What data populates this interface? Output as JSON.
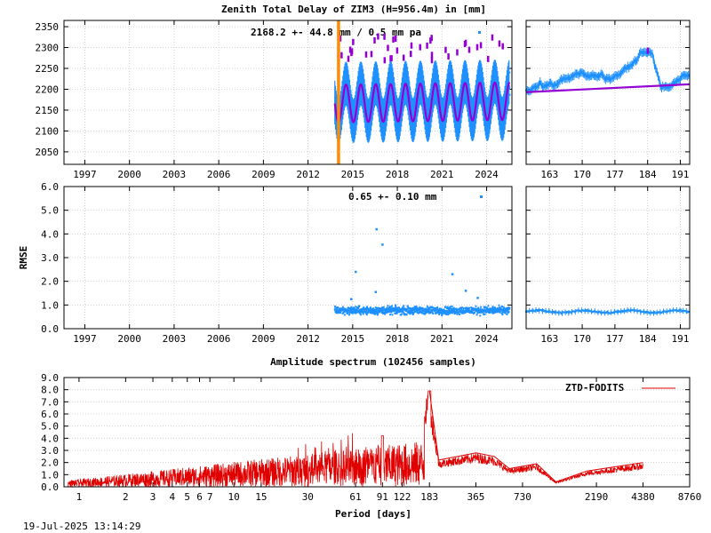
{
  "colors": {
    "series": "#1e90ff",
    "fit": "#9400d3",
    "marker": "#ff8c00",
    "spectrum": "#e00000"
  },
  "footer": {
    "timestamp": "19-Jul-2025 13:14:29"
  },
  "chart_data": [
    {
      "id": "ztd",
      "type": "scatter",
      "title": "Zenith Total Delay of ZIM3 (H=956.4m) in [mm]",
      "annotation": "2168.2 +-  44.8 mm /  0.5 mm pa",
      "xlabel": "",
      "ylabel": "",
      "ylim": [
        2020,
        2365
      ],
      "yticks": [
        "2050",
        "2100",
        "2150",
        "2200",
        "2250",
        "2300",
        "2350"
      ],
      "xlim": [
        1995.6,
        2025.7
      ],
      "xticks": [
        "1997",
        "2000",
        "2003",
        "2006",
        "2009",
        "2012",
        "2015",
        "2018",
        "2021",
        "2024"
      ],
      "data_start": 2013.8,
      "data_end": 2025.55,
      "mean": 2168.2,
      "sigma": 44.8,
      "trend_mm_per_year": 0.5,
      "seasonal_amplitude": 45,
      "marker_year": 2014.05,
      "grid": true
    },
    {
      "id": "ztd-recent",
      "type": "scatter",
      "ylim": [
        2020,
        2365
      ],
      "xlim": [
        158,
        193
      ],
      "xticks": [
        "163",
        "170",
        "177",
        "184",
        "191"
      ]
    },
    {
      "id": "rmse",
      "type": "scatter",
      "annotation": "0.65 +-  0.10 mm",
      "ylabel": "RMSE",
      "ylim": [
        0,
        6
      ],
      "yticks": [
        "0.0",
        "1.0",
        "2.0",
        "3.0",
        "4.0",
        "5.0",
        "6.0"
      ],
      "xlim": [
        1995.6,
        2025.7
      ],
      "xticks": [
        "1997",
        "2000",
        "2003",
        "2006",
        "2009",
        "2012",
        "2015",
        "2018",
        "2021",
        "2024"
      ],
      "mean": 0.65,
      "sigma": 0.1,
      "outliers": [
        {
          "x": 2015.2,
          "y": 2.4
        },
        {
          "x": 2016.6,
          "y": 4.2
        },
        {
          "x": 2017.0,
          "y": 3.55
        },
        {
          "x": 2016.55,
          "y": 1.55
        },
        {
          "x": 2021.7,
          "y": 2.3
        },
        {
          "x": 2022.6,
          "y": 1.6
        },
        {
          "x": 2014.9,
          "y": 1.25
        },
        {
          "x": 2023.4,
          "y": 1.3
        }
      ]
    },
    {
      "id": "rmse-recent",
      "type": "scatter",
      "ylim": [
        0,
        6
      ],
      "xlim": [
        158,
        193
      ],
      "xticks": [
        "163",
        "170",
        "177",
        "184",
        "191"
      ]
    },
    {
      "id": "spectrum",
      "type": "line",
      "title": "Amplitude spectrum (102456 samples)",
      "xlabel": "Period [days]",
      "ylim": [
        0,
        9
      ],
      "yticks": [
        "0.0",
        "1.0",
        "2.0",
        "3.0",
        "4.0",
        "5.0",
        "6.0",
        "7.0",
        "8.0",
        "9.0"
      ],
      "xlim": [
        0.8,
        8760
      ],
      "xscale": "log",
      "xticks": [
        {
          "value": 1,
          "label": "1"
        },
        {
          "value": 2,
          "label": "2"
        },
        {
          "value": 3,
          "label": "3"
        },
        {
          "value": 4,
          "label": "4"
        },
        {
          "value": 5,
          "label": "5"
        },
        {
          "value": 6,
          "label": "6"
        },
        {
          "value": 7,
          "label": "7"
        },
        {
          "value": 10,
          "label": "10"
        },
        {
          "value": 15,
          "label": "15"
        },
        {
          "value": 30,
          "label": "30"
        },
        {
          "value": 61,
          "label": "61"
        },
        {
          "value": 91,
          "label": "91"
        },
        {
          "value": 122,
          "label": "122"
        },
        {
          "value": 183,
          "label": "183"
        },
        {
          "value": 365,
          "label": "365"
        },
        {
          "value": 730,
          "label": "730"
        },
        {
          "value": 2190,
          "label": "2190"
        },
        {
          "value": 4380,
          "label": "4380"
        },
        {
          "value": 8760,
          "label": "8760"
        }
      ],
      "legend": {
        "label": "ZTD-FODITS",
        "position": "top-right"
      },
      "peaks": [
        {
          "period": 1,
          "amplitude": 0.3
        },
        {
          "period": 30,
          "amplitude": 3.0
        },
        {
          "period": 61,
          "amplitude": 3.2
        },
        {
          "period": 91,
          "amplitude": 4.2
        },
        {
          "period": 122,
          "amplitude": 2.8
        },
        {
          "period": 183,
          "amplitude": 7.9
        },
        {
          "period": 210,
          "amplitude": 2.2
        },
        {
          "period": 365,
          "amplitude": 2.8
        },
        {
          "period": 480,
          "amplitude": 2.5
        },
        {
          "period": 600,
          "amplitude": 1.5
        },
        {
          "period": 900,
          "amplitude": 1.9
        },
        {
          "period": 1200,
          "amplitude": 0.4
        },
        {
          "period": 1900,
          "amplitude": 1.3
        },
        {
          "period": 4380,
          "amplitude": 2.0
        }
      ]
    }
  ]
}
